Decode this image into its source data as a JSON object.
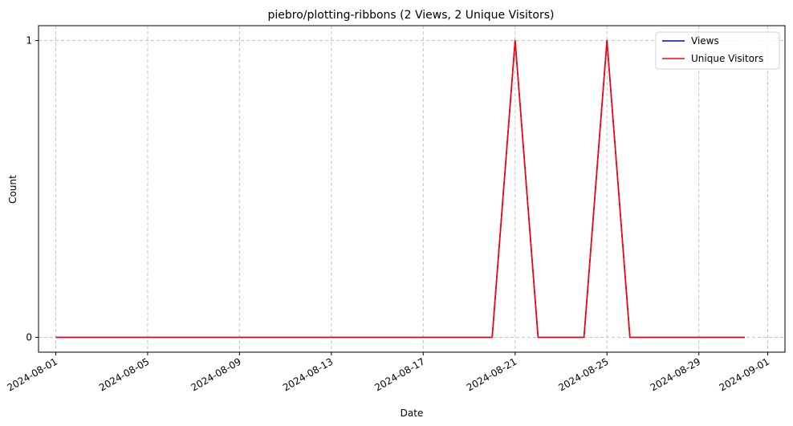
{
  "chart_data": {
    "type": "line",
    "title": "piebro/plotting-ribbons (2 Views, 2 Unique Visitors)",
    "xlabel": "Date",
    "ylabel": "Count",
    "grid": true,
    "legend_position": "top-right",
    "xlim": [
      "2024-07-31T06:00:00",
      "2024-09-01T18:00:00"
    ],
    "ylim": [
      -0.05,
      1.05
    ],
    "x_ticks": [
      "2024-08-01",
      "2024-08-05",
      "2024-08-09",
      "2024-08-13",
      "2024-08-17",
      "2024-08-21",
      "2024-08-25",
      "2024-08-29",
      "2024-09-01"
    ],
    "y_ticks": [
      0,
      1
    ],
    "series": [
      {
        "name": "Views",
        "color": "#0000cc",
        "x": [
          "2024-08-01",
          "2024-08-20",
          "2024-08-21",
          "2024-08-22",
          "2024-08-24",
          "2024-08-25",
          "2024-08-26",
          "2024-08-31"
        ],
        "values": [
          0,
          0,
          1,
          0,
          0,
          1,
          0,
          0
        ]
      },
      {
        "name": "Unique Visitors",
        "color": "#ff0000",
        "x": [
          "2024-08-01",
          "2024-08-20",
          "2024-08-21",
          "2024-08-22",
          "2024-08-24",
          "2024-08-25",
          "2024-08-26",
          "2024-08-31"
        ],
        "values": [
          0,
          0,
          1,
          0,
          0,
          1,
          0,
          0
        ]
      }
    ]
  }
}
